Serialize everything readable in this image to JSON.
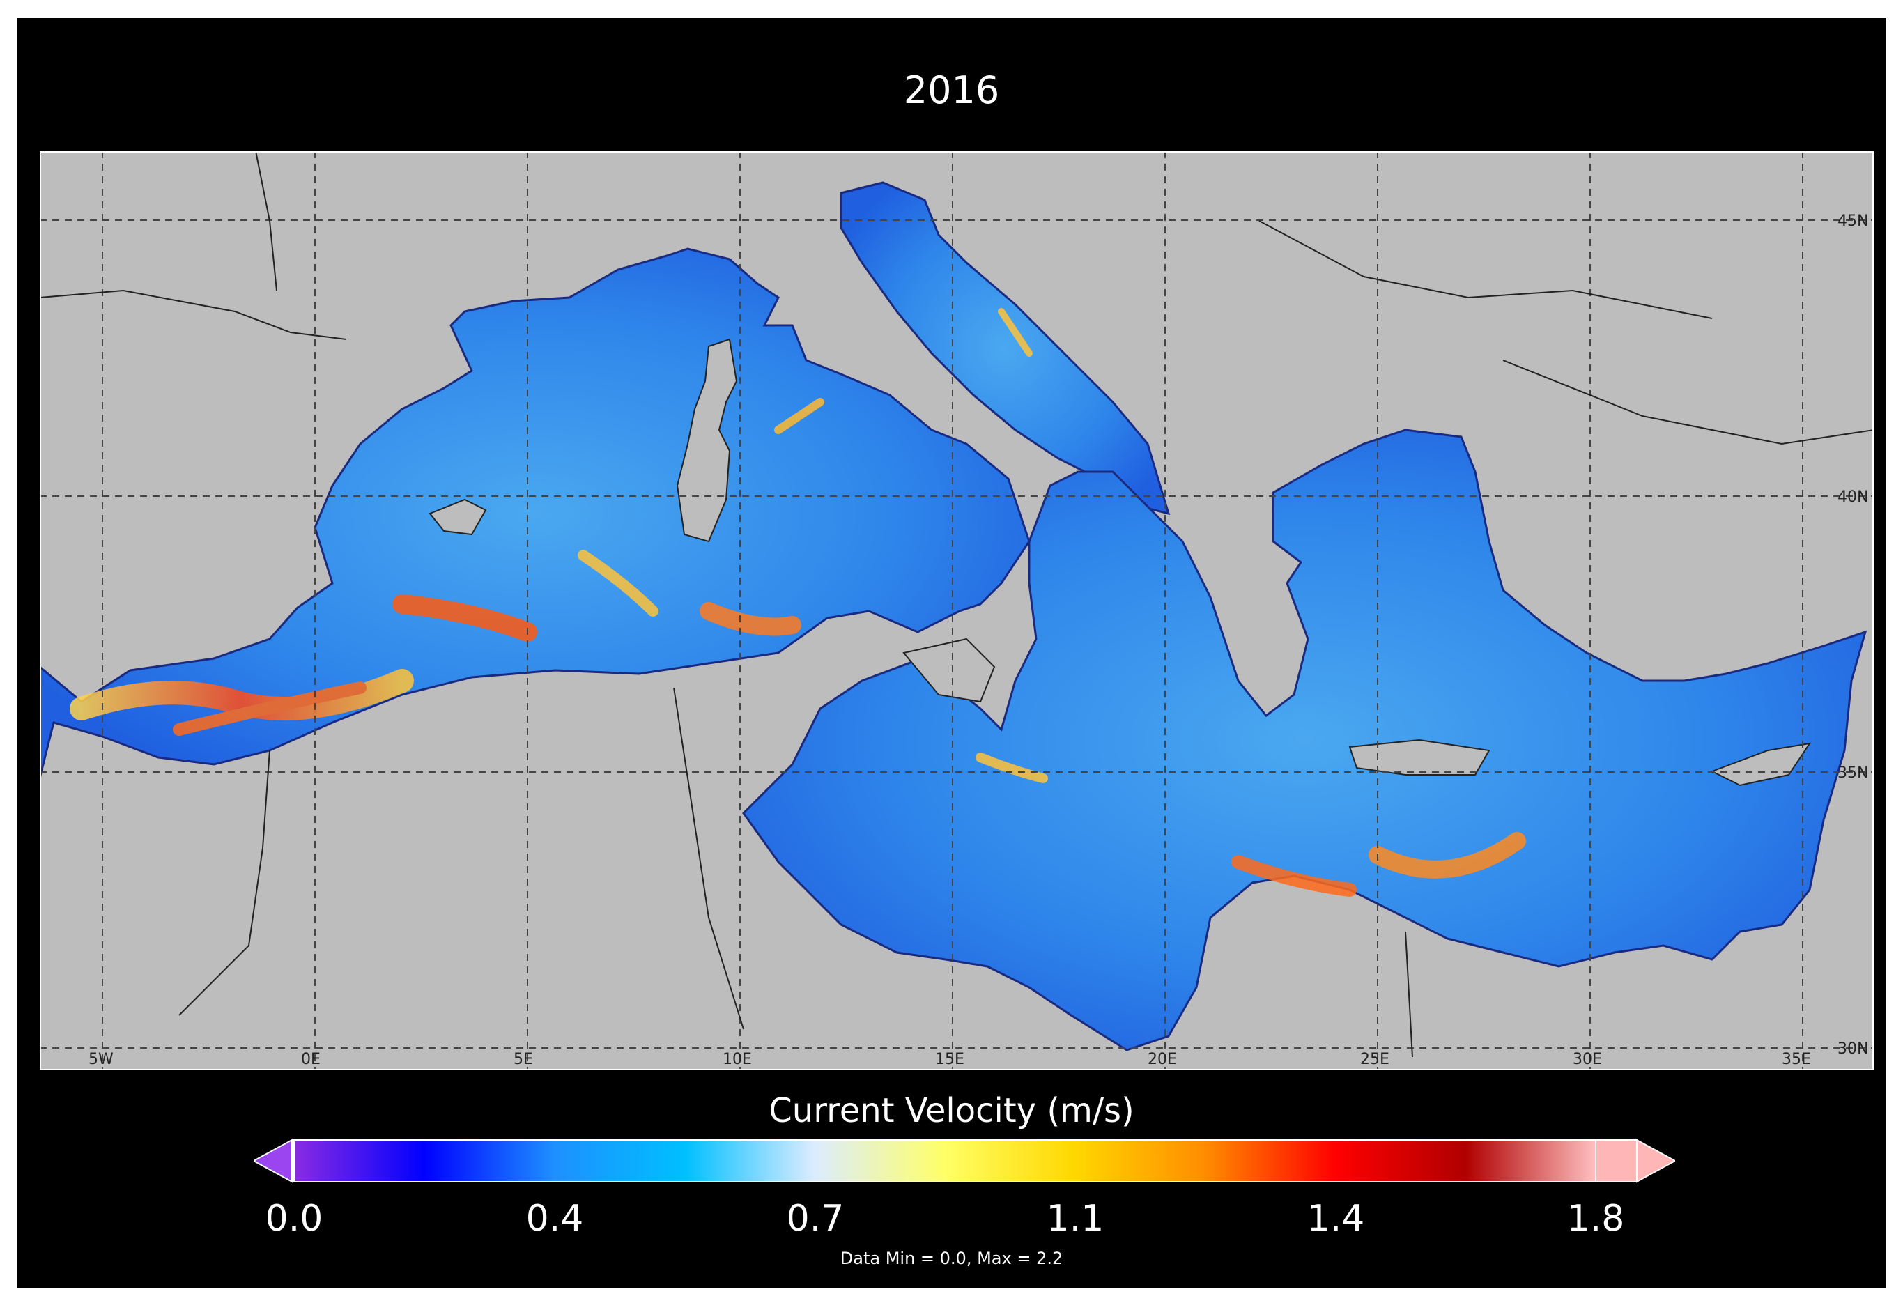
{
  "title": "2016",
  "map": {
    "region": "Mediterranean Sea",
    "land_color": "#bdbdbd",
    "border_color": "#222222",
    "lon_labels": [
      "5W",
      "0E",
      "5E",
      "10E",
      "15E",
      "20E",
      "25E",
      "30E",
      "35E"
    ],
    "lat_labels": [
      "45N",
      "40N",
      "35N",
      "30N"
    ]
  },
  "colorbar": {
    "label": "Current Velocity (m/s)",
    "ticks": [
      "0.0",
      "0.4",
      "0.7",
      "1.1",
      "1.4",
      "1.8"
    ],
    "range": [
      0.0,
      1.8
    ],
    "colors": [
      "#8a2be2",
      "#0000ff",
      "#1e90ff",
      "#00bfff",
      "#dcecff",
      "#ffff66",
      "#ffd700",
      "#ff8c00",
      "#ff0000",
      "#b00000",
      "#ffc0c0"
    ],
    "under_color": "#9b45f0",
    "over_color": "#ffb6b6"
  },
  "data_minmax": "Data Min = 0.0, Max = 2.2"
}
